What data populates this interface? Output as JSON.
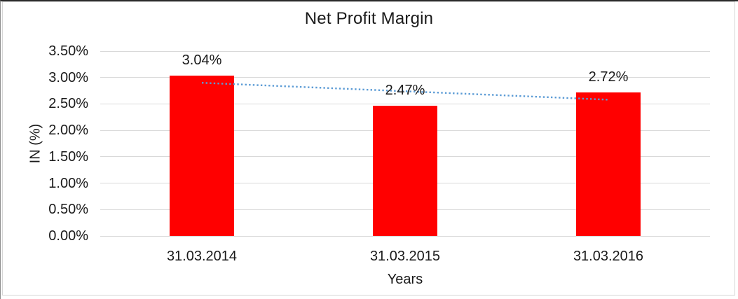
{
  "chart_data": {
    "type": "bar",
    "title": "Net Profit Margin",
    "xlabel": "Years",
    "ylabel": "IN (%)",
    "categories": [
      "31.03.2014",
      "31.03.2015",
      "31.03.2016"
    ],
    "values": [
      3.04,
      2.47,
      2.72
    ],
    "data_labels": [
      "3.04%",
      "2.47%",
      "2.72%"
    ],
    "ylim": [
      0,
      3.5
    ],
    "ytick_step": 0.5,
    "ytick_labels": [
      "0.00%",
      "0.50%",
      "1.00%",
      "1.50%",
      "2.00%",
      "2.50%",
      "3.00%",
      "3.50%"
    ],
    "grid": true,
    "legend": "none",
    "bar_color": "#ff0000",
    "gridline_color": "#d9d9d9",
    "trendline": {
      "type": "linear",
      "style": "dotted",
      "color": "#5b9bd5",
      "endpoint_values": [
        2.9,
        2.58
      ]
    }
  }
}
